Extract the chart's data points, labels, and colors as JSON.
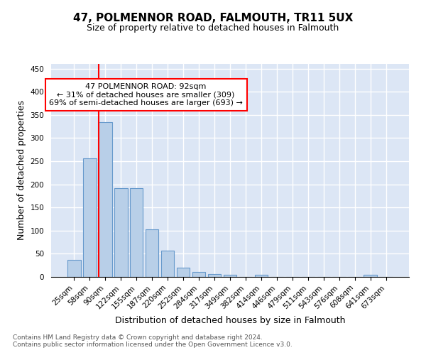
{
  "title": "47, POLMENNOR ROAD, FALMOUTH, TR11 5UX",
  "subtitle": "Size of property relative to detached houses in Falmouth",
  "xlabel": "Distribution of detached houses by size in Falmouth",
  "ylabel": "Number of detached properties",
  "bin_labels": [
    "25sqm",
    "58sqm",
    "90sqm",
    "122sqm",
    "155sqm",
    "187sqm",
    "220sqm",
    "252sqm",
    "284sqm",
    "317sqm",
    "349sqm",
    "382sqm",
    "414sqm",
    "446sqm",
    "479sqm",
    "511sqm",
    "543sqm",
    "576sqm",
    "608sqm",
    "641sqm",
    "673sqm"
  ],
  "bar_heights": [
    37,
    256,
    335,
    192,
    192,
    102,
    56,
    20,
    10,
    6,
    4,
    0,
    5,
    0,
    0,
    0,
    0,
    0,
    0,
    5,
    0
  ],
  "bar_color": "#b8cfe8",
  "bar_edge_color": "#6699cc",
  "background_color": "#dce6f5",
  "grid_color": "white",
  "vline_color": "red",
  "vline_xindex": 2,
  "annotation_text": "47 POLMENNOR ROAD: 92sqm\n← 31% of detached houses are smaller (309)\n69% of semi-detached houses are larger (693) →",
  "ylim": [
    0,
    460
  ],
  "yticks": [
    0,
    50,
    100,
    150,
    200,
    250,
    300,
    350,
    400,
    450
  ],
  "footer": "Contains HM Land Registry data © Crown copyright and database right 2024.\nContains public sector information licensed under the Open Government Licence v3.0.",
  "title_fontsize": 11,
  "subtitle_fontsize": 9,
  "ylabel_fontsize": 9,
  "xlabel_fontsize": 9,
  "tick_fontsize": 7.5,
  "annotation_fontsize": 8,
  "footer_fontsize": 6.5
}
